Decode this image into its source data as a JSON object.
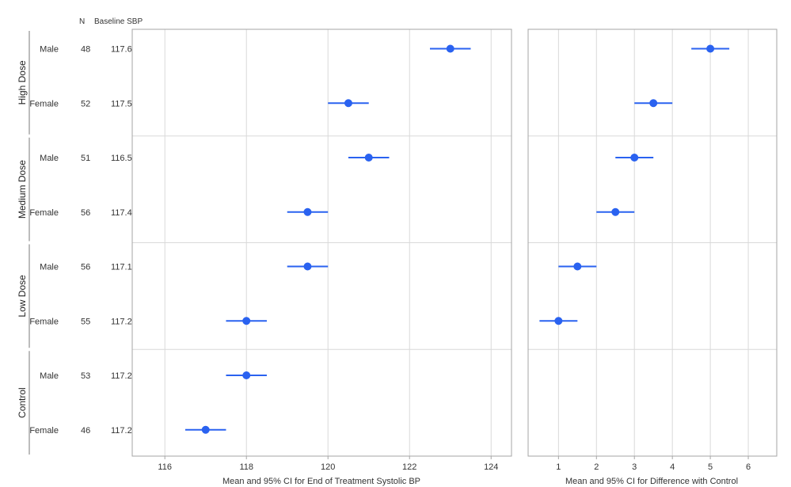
{
  "headers": {
    "n": "N",
    "baseline": "Baseline SBP"
  },
  "chart_data": {
    "type": "scatter",
    "groups": [
      "High Dose",
      "Medium Dose",
      "Low Dose",
      "Control"
    ],
    "rows": [
      {
        "group": "High Dose",
        "sex": "Male",
        "n": "48",
        "baseline": "117.6",
        "mean": 123.0,
        "lo": 122.5,
        "hi": 123.5,
        "diff": 5.0,
        "dlo": 4.5,
        "dhi": 5.5
      },
      {
        "group": "High Dose",
        "sex": "Female",
        "n": "52",
        "baseline": "117.5",
        "mean": 120.5,
        "lo": 120.0,
        "hi": 121.0,
        "diff": 3.5,
        "dlo": 3.0,
        "dhi": 4.0
      },
      {
        "group": "Medium Dose",
        "sex": "Male",
        "n": "51",
        "baseline": "116.5",
        "mean": 121.0,
        "lo": 120.5,
        "hi": 121.5,
        "diff": 3.0,
        "dlo": 2.5,
        "dhi": 3.5
      },
      {
        "group": "Medium Dose",
        "sex": "Female",
        "n": "56",
        "baseline": "117.4",
        "mean": 119.5,
        "lo": 119.0,
        "hi": 120.0,
        "diff": 2.5,
        "dlo": 2.0,
        "dhi": 3.0
      },
      {
        "group": "Low Dose",
        "sex": "Male",
        "n": "56",
        "baseline": "117.1",
        "mean": 119.5,
        "lo": 119.0,
        "hi": 120.0,
        "diff": 1.5,
        "dlo": 1.0,
        "dhi": 2.0
      },
      {
        "group": "Low Dose",
        "sex": "Female",
        "n": "55",
        "baseline": "117.2",
        "mean": 118.0,
        "lo": 117.5,
        "hi": 118.5,
        "diff": 1.0,
        "dlo": 0.5,
        "dhi": 1.5
      },
      {
        "group": "Control",
        "sex": "Male",
        "n": "53",
        "baseline": "117.2",
        "mean": 118.0,
        "lo": 117.5,
        "hi": 118.5
      },
      {
        "group": "Control",
        "sex": "Female",
        "n": "46",
        "baseline": "117.2",
        "mean": 117.0,
        "lo": 116.5,
        "hi": 117.5
      }
    ],
    "left_panel": {
      "xlabel": "Mean and 95% CI for End of Treatment Systolic BP",
      "xlim": [
        115.2,
        124.5
      ],
      "ticks": [
        116,
        118,
        120,
        122,
        124
      ],
      "grid": true
    },
    "right_panel": {
      "xlabel": "Mean and 95% CI for Difference with Control",
      "xlim": [
        0.2,
        6.75
      ],
      "ticks": [
        1,
        2,
        3,
        4,
        5,
        6
      ],
      "grid": true
    },
    "colors": {
      "marker": "#2a62f0",
      "grid": "#d9d9d9",
      "frame": "#a6a6a6"
    }
  }
}
